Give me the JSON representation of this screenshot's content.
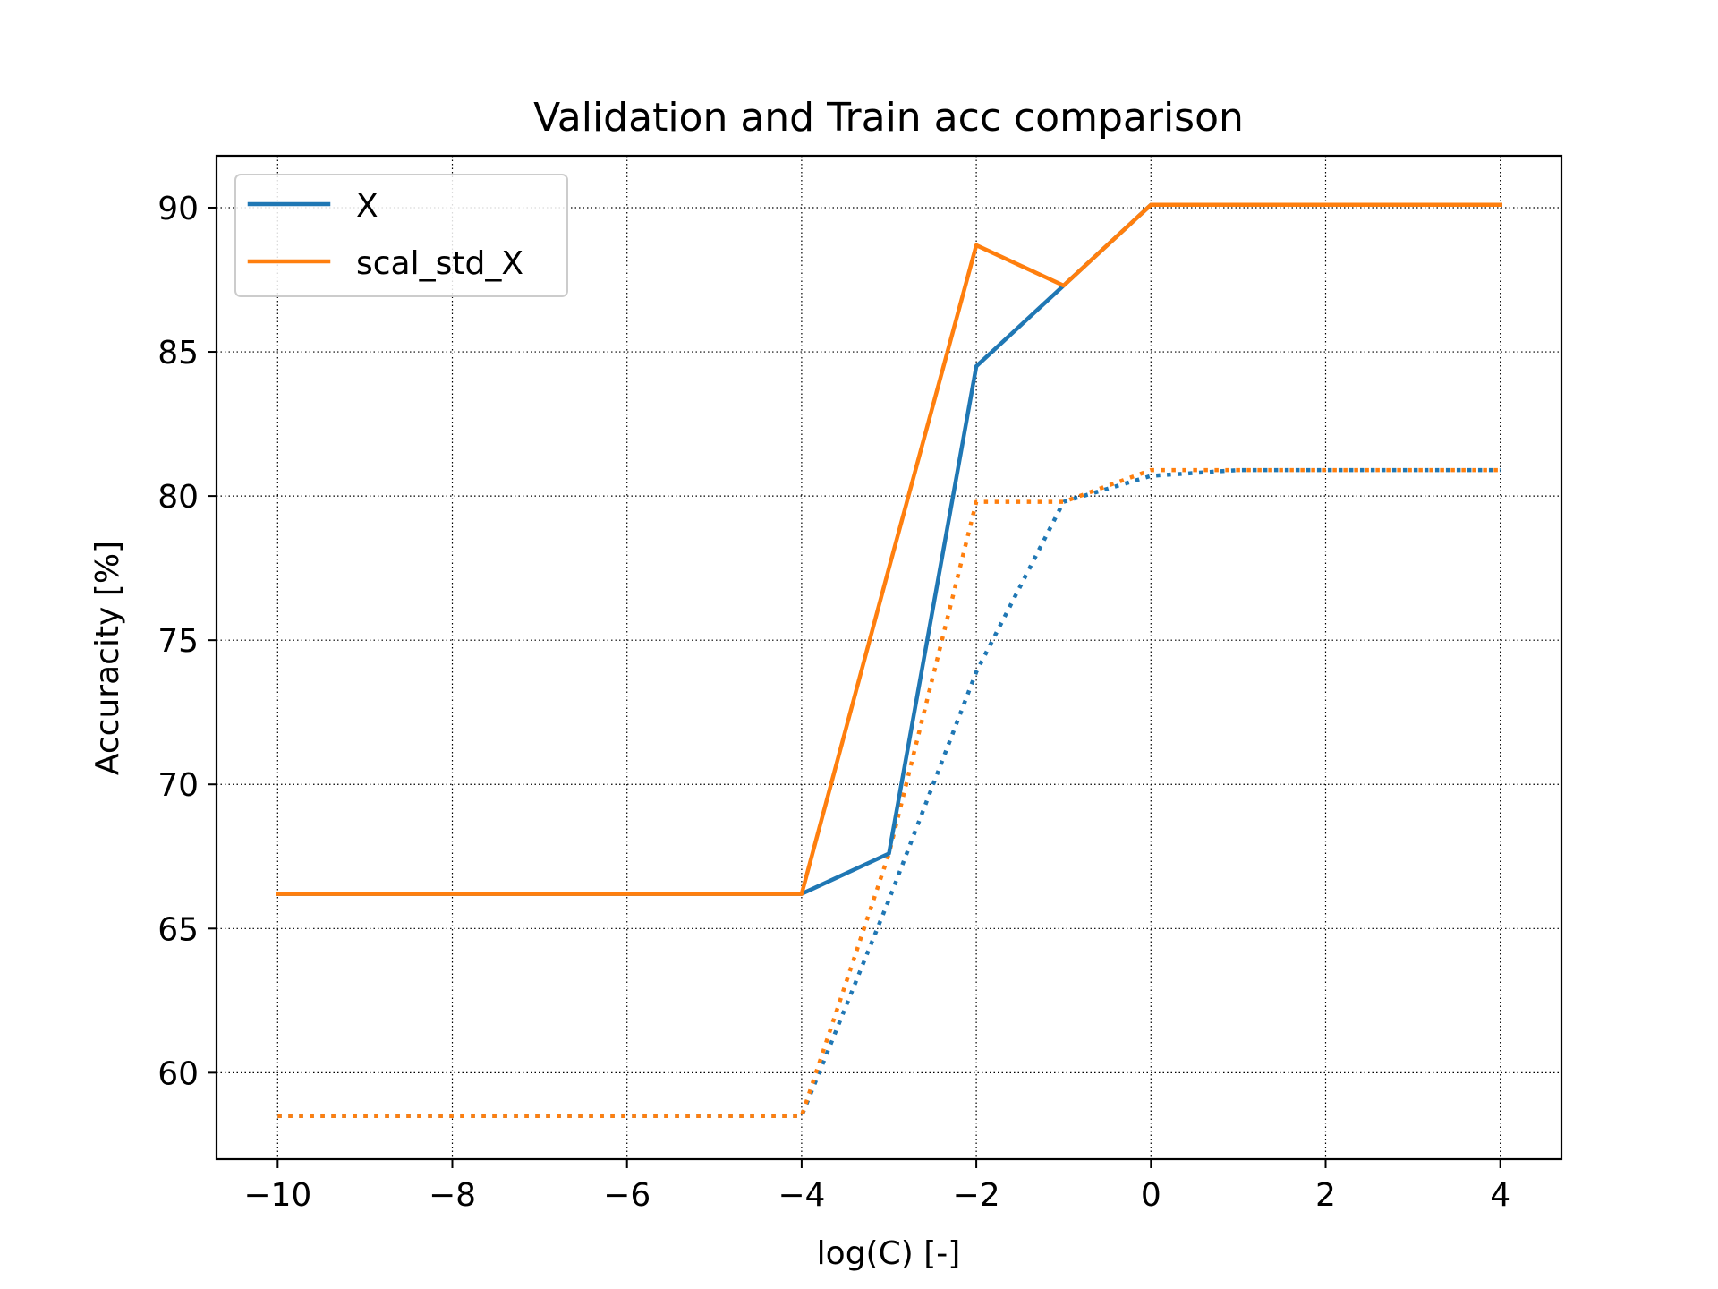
{
  "chart_data": {
    "type": "line",
    "title": "Validation and Train acc comparison",
    "xlabel": "log(C) [-]",
    "ylabel": "Accuracity [%]",
    "xlim": [
      -10.7,
      4.7
    ],
    "ylim": [
      57,
      91.8
    ],
    "xticks": [
      -10,
      -8,
      -6,
      -4,
      -2,
      0,
      2,
      4
    ],
    "xtick_labels": [
      "−10",
      "−8",
      "−6",
      "−4",
      "−2",
      "0",
      "2",
      "4"
    ],
    "yticks": [
      60,
      65,
      70,
      75,
      80,
      85,
      90
    ],
    "ytick_labels": [
      "60",
      "65",
      "70",
      "75",
      "80",
      "85",
      "90"
    ],
    "grid": true,
    "legend_position": "upper-left",
    "legend": [
      {
        "label": "X",
        "color": "#1f77b4"
      },
      {
        "label": "scal_std_X",
        "color": "#ff7f0e"
      }
    ],
    "x": [
      -10,
      -9,
      -8,
      -7,
      -6,
      -5,
      -4,
      -3,
      -2,
      -1,
      0,
      1,
      2,
      3,
      4
    ],
    "series": [
      {
        "name": "X",
        "style": "solid",
        "color": "#1f77b4",
        "values": [
          66.2,
          66.2,
          66.2,
          66.2,
          66.2,
          66.2,
          66.2,
          67.6,
          84.5,
          87.3,
          90.1,
          90.1,
          90.1,
          90.1,
          90.1
        ]
      },
      {
        "name": "scal_std_X",
        "style": "solid",
        "color": "#ff7f0e",
        "values": [
          66.2,
          66.2,
          66.2,
          66.2,
          66.2,
          66.2,
          66.2,
          77.5,
          88.7,
          87.3,
          90.1,
          90.1,
          90.1,
          90.1,
          90.1
        ]
      },
      {
        "style": "dotted",
        "color": "#1f77b4",
        "values": [
          58.5,
          58.5,
          58.5,
          58.5,
          58.5,
          58.5,
          58.5,
          66.0,
          73.9,
          79.8,
          80.7,
          80.9,
          80.9,
          80.9,
          80.9
        ]
      },
      {
        "style": "dotted",
        "color": "#ff7f0e",
        "values": [
          58.5,
          58.5,
          58.5,
          58.5,
          58.5,
          58.5,
          58.5,
          67.6,
          79.8,
          79.8,
          80.9,
          80.9,
          80.9,
          80.9,
          80.9
        ]
      }
    ]
  }
}
